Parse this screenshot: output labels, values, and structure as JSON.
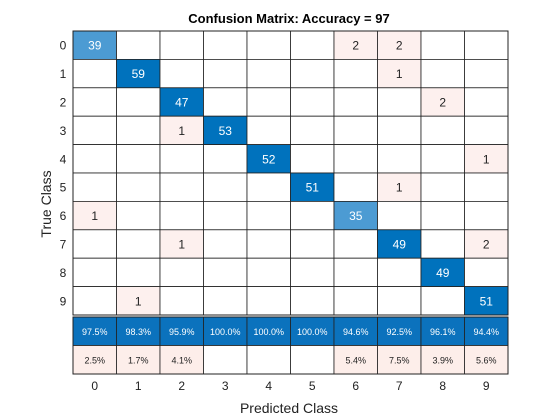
{
  "chart_data": {
    "type": "heatmap",
    "title": "Confusion Matrix: Accuracy = 97",
    "xlabel": "Predicted Class",
    "ylabel": "True Class",
    "classes": [
      "0",
      "1",
      "2",
      "3",
      "4",
      "5",
      "6",
      "7",
      "8",
      "9"
    ],
    "matrix": [
      [
        39,
        0,
        0,
        0,
        0,
        0,
        2,
        2,
        0,
        0
      ],
      [
        0,
        59,
        0,
        0,
        0,
        0,
        0,
        1,
        0,
        0
      ],
      [
        0,
        0,
        47,
        0,
        0,
        0,
        0,
        0,
        2,
        0
      ],
      [
        0,
        0,
        1,
        53,
        0,
        0,
        0,
        0,
        0,
        0
      ],
      [
        0,
        0,
        0,
        0,
        52,
        0,
        0,
        0,
        0,
        1
      ],
      [
        0,
        0,
        0,
        0,
        0,
        51,
        0,
        1,
        0,
        0
      ],
      [
        1,
        0,
        0,
        0,
        0,
        0,
        35,
        0,
        0,
        0
      ],
      [
        0,
        0,
        1,
        0,
        0,
        0,
        0,
        49,
        0,
        2
      ],
      [
        0,
        0,
        0,
        0,
        0,
        0,
        0,
        0,
        49,
        0
      ],
      [
        0,
        1,
        0,
        0,
        0,
        0,
        0,
        0,
        0,
        51
      ]
    ],
    "column_summary": {
      "correct": [
        "97.5%",
        "98.3%",
        "95.9%",
        "100.0%",
        "100.0%",
        "100.0%",
        "94.6%",
        "92.5%",
        "96.1%",
        "94.4%"
      ],
      "incorrect": [
        "2.5%",
        "1.7%",
        "4.1%",
        "",
        "",
        "",
        "5.4%",
        "7.5%",
        "3.9%",
        "5.6%"
      ]
    },
    "colors": {
      "diagonal_dark": "#0072bd",
      "diagonal_light": "#4c9bd3",
      "off_diagonal": "#fdf0ee",
      "summary_correct": "#0b72bd",
      "summary_incorrect": "#fdeeea",
      "grid": "#222222"
    }
  }
}
